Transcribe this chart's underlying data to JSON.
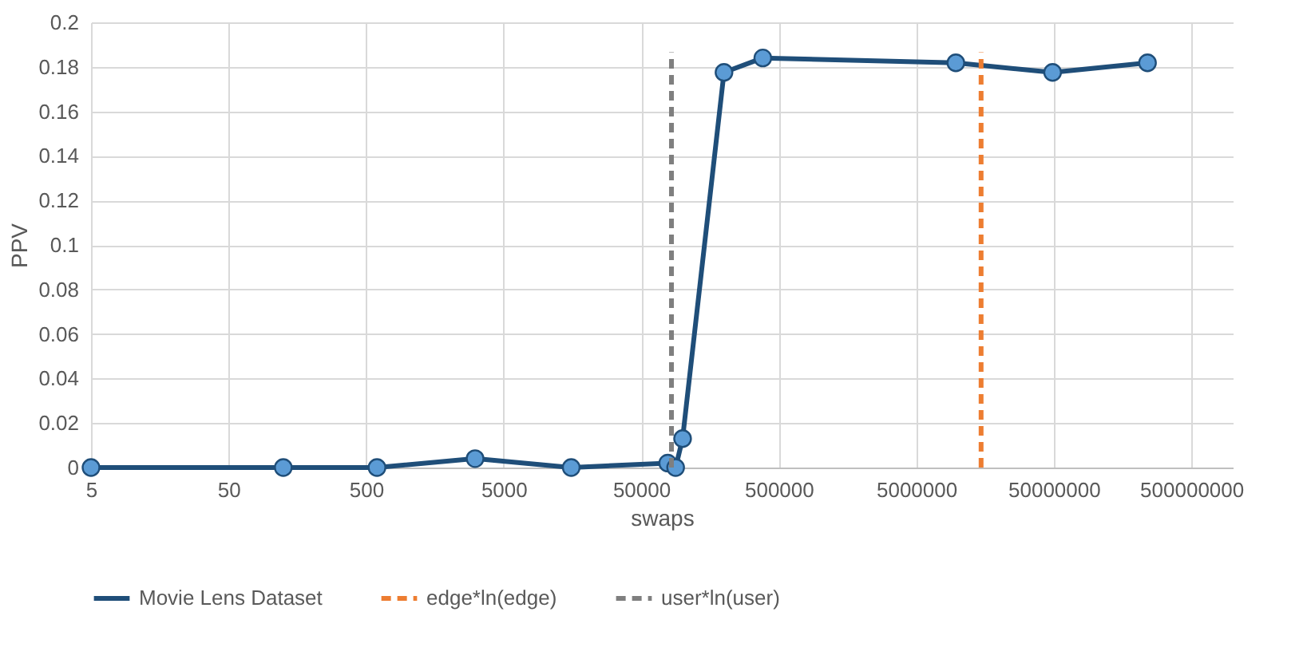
{
  "chart_data": {
    "type": "line",
    "xlabel": "swaps",
    "ylabel": "PPV",
    "log": "x",
    "grid": true,
    "legend": "bottom",
    "xlim": [
      5,
      1000000000
    ],
    "xticks": [
      5,
      50,
      500,
      5000,
      50000,
      500000,
      5000000,
      50000000,
      500000000
    ],
    "ylim": [
      0,
      0.2
    ],
    "yticks": [
      0,
      0.02,
      0.04,
      0.06,
      0.08,
      0.1,
      0.12,
      0.14,
      0.16,
      0.18,
      0.2
    ],
    "series": [
      {
        "name": "Movie Lens Dataset",
        "color": "#1f4e79",
        "marker": "circle",
        "line_style": "solid",
        "x": [
          5,
          125,
          600,
          3100,
          15500,
          78000,
          89000,
          100000,
          200000,
          383000,
          9700000,
          49000000,
          240000000
        ],
        "values": [
          0,
          0,
          0,
          0.004,
          0,
          0.002,
          0,
          0.013,
          0.1775,
          0.184,
          0.1818,
          0.1775,
          0.1818
        ]
      },
      {
        "name": "edge*ln(edge)",
        "color": "#ed7d31",
        "marker": "none",
        "line_style": "dashed",
        "x": [
          14800000,
          14800000
        ],
        "values": [
          0,
          0.1866
        ]
      },
      {
        "name": "user*ln(user)",
        "color": "#7f7f7f",
        "marker": "none",
        "line_style": "dashed",
        "x": [
          83000,
          83000
        ],
        "values": [
          0,
          0.1866
        ]
      }
    ]
  }
}
